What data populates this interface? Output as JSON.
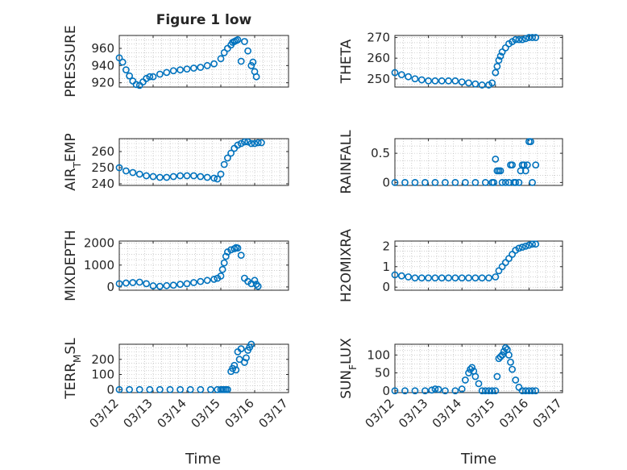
{
  "figure": {
    "title": "Figure 1 low",
    "xlabel": "Time"
  },
  "colors": {
    "marker": "#0072bd",
    "axis": "#262626",
    "grid": "#b0b0b0"
  },
  "chart_data": [
    {
      "type": "scatter",
      "title": "Figure 1 low",
      "ylabel": "PRESSURE",
      "xlim": [
        "03/12",
        "03/17"
      ],
      "ylim": [
        915,
        975
      ],
      "yticks": [
        920,
        940,
        960
      ],
      "x": [
        12.0,
        12.1,
        12.2,
        12.3,
        12.4,
        12.5,
        12.6,
        12.7,
        12.8,
        12.9,
        13.0,
        13.2,
        13.4,
        13.6,
        13.8,
        14.0,
        14.2,
        14.4,
        14.6,
        14.8,
        15.0,
        15.1,
        15.2,
        15.3,
        15.35,
        15.4,
        15.45,
        15.5,
        15.6,
        15.7,
        15.8,
        15.9,
        15.95,
        16.0,
        16.05
      ],
      "y": [
        949,
        944,
        935,
        928,
        922,
        918,
        917,
        921,
        925,
        927,
        927,
        930,
        932,
        934,
        935,
        936,
        937,
        938,
        940,
        942,
        948,
        955,
        960,
        964,
        967,
        968,
        969,
        970,
        945,
        968,
        957,
        940,
        944,
        933,
        927
      ]
    },
    {
      "type": "scatter",
      "ylabel": "THETA",
      "xlim": [
        "03/12",
        "03/17"
      ],
      "ylim": [
        246,
        271
      ],
      "yticks": [
        250,
        260,
        270
      ],
      "x": [
        12.0,
        12.2,
        12.4,
        12.6,
        12.8,
        13.0,
        13.2,
        13.4,
        13.6,
        13.8,
        14.0,
        14.2,
        14.4,
        14.6,
        14.8,
        14.9,
        15.0,
        15.05,
        15.1,
        15.15,
        15.2,
        15.3,
        15.4,
        15.5,
        15.6,
        15.7,
        15.8,
        15.9,
        16.0,
        16.1,
        16.2
      ],
      "y": [
        253,
        252,
        251,
        250,
        249.5,
        249,
        249,
        249,
        249,
        249,
        248.5,
        248,
        247.5,
        247,
        247,
        248,
        253,
        256,
        259,
        261,
        263,
        265,
        267,
        268,
        269,
        269,
        269,
        269.5,
        270,
        270,
        270
      ]
    },
    {
      "type": "scatter",
      "ylabel": "AIR_TEMP",
      "xlim": [
        "03/12",
        "03/17"
      ],
      "ylim": [
        239,
        268
      ],
      "yticks": [
        240,
        250,
        260
      ],
      "x": [
        12.0,
        12.2,
        12.4,
        12.6,
        12.8,
        13.0,
        13.2,
        13.4,
        13.6,
        13.8,
        14.0,
        14.2,
        14.4,
        14.6,
        14.8,
        14.9,
        15.0,
        15.1,
        15.2,
        15.3,
        15.4,
        15.5,
        15.6,
        15.7,
        15.8,
        15.9,
        16.0,
        16.1,
        16.2
      ],
      "y": [
        250,
        248,
        247,
        246,
        245,
        244.5,
        244,
        244,
        244.5,
        245,
        245,
        245,
        244.5,
        244,
        243.5,
        243,
        246,
        252,
        256,
        259,
        262,
        264,
        265,
        266,
        266,
        265,
        265,
        265.5,
        265.5
      ]
    },
    {
      "type": "scatter",
      "ylabel": "RAINFALL",
      "xlim": [
        "03/12",
        "03/17"
      ],
      "ylim": [
        -0.05,
        0.75
      ],
      "yticks": [
        0,
        0.5
      ],
      "x": [
        12.0,
        12.3,
        12.6,
        12.9,
        13.2,
        13.5,
        13.8,
        14.1,
        14.4,
        14.7,
        14.9,
        14.95,
        15.0,
        15.05,
        15.1,
        15.15,
        15.2,
        15.3,
        15.4,
        15.45,
        15.5,
        15.55,
        15.6,
        15.7,
        15.75,
        15.8,
        15.85,
        15.9,
        15.95,
        16.0,
        16.05,
        16.1,
        16.2
      ],
      "y": [
        0,
        0,
        0,
        0,
        0,
        0,
        0,
        0,
        0,
        0,
        0,
        0,
        0.4,
        0.2,
        0.2,
        0.2,
        0,
        0,
        0,
        0.3,
        0.3,
        0,
        0,
        0,
        0.2,
        0.3,
        0.3,
        0.2,
        0.3,
        0.7,
        0.7,
        0,
        0.3
      ]
    },
    {
      "type": "scatter",
      "ylabel": "MIXDEPTH",
      "xlim": [
        "03/12",
        "03/17"
      ],
      "ylim": [
        -150,
        2100
      ],
      "yticks": [
        0,
        1000,
        2000
      ],
      "x": [
        12.0,
        12.2,
        12.4,
        12.6,
        12.8,
        13.0,
        13.2,
        13.4,
        13.6,
        13.8,
        14.0,
        14.2,
        14.4,
        14.6,
        14.8,
        14.9,
        15.0,
        15.05,
        15.1,
        15.15,
        15.2,
        15.3,
        15.4,
        15.45,
        15.5,
        15.6,
        15.7,
        15.8,
        15.9,
        16.0,
        16.05,
        16.1
      ],
      "y": [
        150,
        180,
        200,
        220,
        150,
        50,
        30,
        60,
        80,
        120,
        150,
        200,
        250,
        300,
        350,
        400,
        500,
        800,
        1100,
        1400,
        1600,
        1700,
        1750,
        1800,
        1780,
        1450,
        400,
        250,
        150,
        300,
        120,
        30
      ]
    },
    {
      "type": "scatter",
      "ylabel": "H2OMIXRA",
      "xlim": [
        "03/12",
        "03/17"
      ],
      "ylim": [
        -0.15,
        2.25
      ],
      "yticks": [
        0,
        1,
        2
      ],
      "x": [
        12.0,
        12.2,
        12.4,
        12.6,
        12.8,
        13.0,
        13.2,
        13.4,
        13.6,
        13.8,
        14.0,
        14.2,
        14.4,
        14.6,
        14.8,
        15.0,
        15.1,
        15.2,
        15.3,
        15.4,
        15.5,
        15.6,
        15.7,
        15.8,
        15.9,
        16.0,
        16.1,
        16.2
      ],
      "y": [
        0.6,
        0.55,
        0.5,
        0.45,
        0.45,
        0.45,
        0.45,
        0.45,
        0.45,
        0.45,
        0.45,
        0.45,
        0.45,
        0.45,
        0.45,
        0.5,
        0.8,
        1.0,
        1.2,
        1.4,
        1.6,
        1.8,
        1.9,
        1.95,
        2.0,
        2.05,
        2.1,
        2.1
      ]
    },
    {
      "type": "scatter",
      "ylabel": "TERR_MSL",
      "xlim": [
        "03/12",
        "03/17"
      ],
      "ylim": [
        -20,
        300
      ],
      "yticks": [
        0,
        100,
        200
      ],
      "x": [
        12.0,
        12.3,
        12.6,
        12.9,
        13.2,
        13.5,
        13.8,
        14.1,
        14.4,
        14.7,
        14.9,
        15.0,
        15.05,
        15.1,
        15.15,
        15.2,
        15.3,
        15.35,
        15.4,
        15.45,
        15.5,
        15.55,
        15.6,
        15.7,
        15.75,
        15.8,
        15.85,
        15.9
      ],
      "y": [
        0,
        0,
        0,
        0,
        0,
        0,
        0,
        0,
        0,
        0,
        0,
        0,
        0,
        0,
        0,
        0,
        120,
        140,
        160,
        130,
        250,
        200,
        270,
        180,
        210,
        260,
        280,
        300
      ]
    },
    {
      "type": "scatter",
      "ylabel": "SUN_FLUX",
      "xlim": [
        "03/12",
        "03/17"
      ],
      "ylim": [
        -5,
        130
      ],
      "yticks": [
        0,
        50,
        100
      ],
      "x": [
        12.0,
        12.3,
        12.6,
        12.9,
        13.1,
        13.2,
        13.3,
        13.5,
        13.8,
        14.0,
        14.1,
        14.2,
        14.25,
        14.3,
        14.35,
        14.4,
        14.5,
        14.6,
        14.7,
        14.8,
        14.9,
        15.0,
        15.05,
        15.1,
        15.15,
        15.2,
        15.25,
        15.3,
        15.35,
        15.4,
        15.45,
        15.5,
        15.6,
        15.7,
        15.8,
        15.9,
        16.0,
        16.1,
        16.2
      ],
      "y": [
        0,
        0,
        0,
        0,
        2,
        5,
        4,
        0,
        0,
        5,
        30,
        50,
        60,
        65,
        55,
        40,
        20,
        0,
        0,
        0,
        0,
        0,
        40,
        90,
        95,
        100,
        110,
        120,
        115,
        100,
        80,
        60,
        30,
        10,
        0,
        0,
        0,
        0,
        0
      ]
    }
  ]
}
